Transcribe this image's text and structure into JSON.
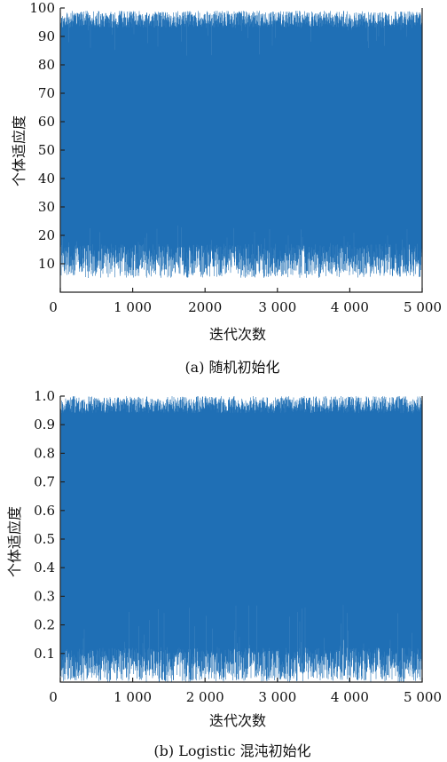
{
  "chart_data": [
    {
      "type": "line",
      "subplot_caption": "(a) 随机初始化",
      "xlabel": "迭代次数",
      "ylabel": "个体适应度",
      "xlim": [
        0,
        5000
      ],
      "ylim": [
        0,
        100
      ],
      "x_ticks": [
        0,
        1000,
        2000,
        3000,
        4000,
        5000
      ],
      "x_tick_labels": [
        "0",
        "1 000",
        "2000",
        "3 000",
        "4 000",
        "5 000"
      ],
      "y_ticks": [
        10,
        20,
        30,
        40,
        50,
        60,
        70,
        80,
        90,
        100
      ],
      "y_tick_labels": [
        "10",
        "20",
        "30",
        "40",
        "50",
        "60",
        "70",
        "80",
        "90",
        "100"
      ],
      "series_color": "#1f6fb5",
      "series_summary": {
        "n_points": 5000,
        "typical_min": 5,
        "typical_max": 99,
        "occasional_high_min": 24,
        "occasional_low_max": 82
      }
    },
    {
      "type": "line",
      "subplot_caption": "(b) Logistic 混沌初始化",
      "xlabel": "迭代次数",
      "ylabel": "个体适应度",
      "xlim": [
        0,
        5000
      ],
      "ylim": [
        0,
        1.0
      ],
      "x_ticks": [
        0,
        1000,
        2000,
        3000,
        4000,
        5000
      ],
      "x_tick_labels": [
        "0",
        "1 000",
        "2 000",
        "3 000",
        "4 000",
        "5 000"
      ],
      "y_ticks": [
        0.1,
        0.2,
        0.3,
        0.4,
        0.5,
        0.6,
        0.7,
        0.8,
        0.9,
        1.0
      ],
      "y_tick_labels": [
        "0.1",
        "0.2",
        "0.3",
        "0.4",
        "0.5",
        "0.6",
        "0.7",
        "0.8",
        "0.9",
        "1.0"
      ],
      "series_color": "#1f6fb5",
      "series_summary": {
        "n_points": 5000,
        "typical_min": 0.0,
        "typical_max": 1.0,
        "occasional_high_min": 0.27,
        "occasional_low_max": 0.95
      }
    }
  ]
}
